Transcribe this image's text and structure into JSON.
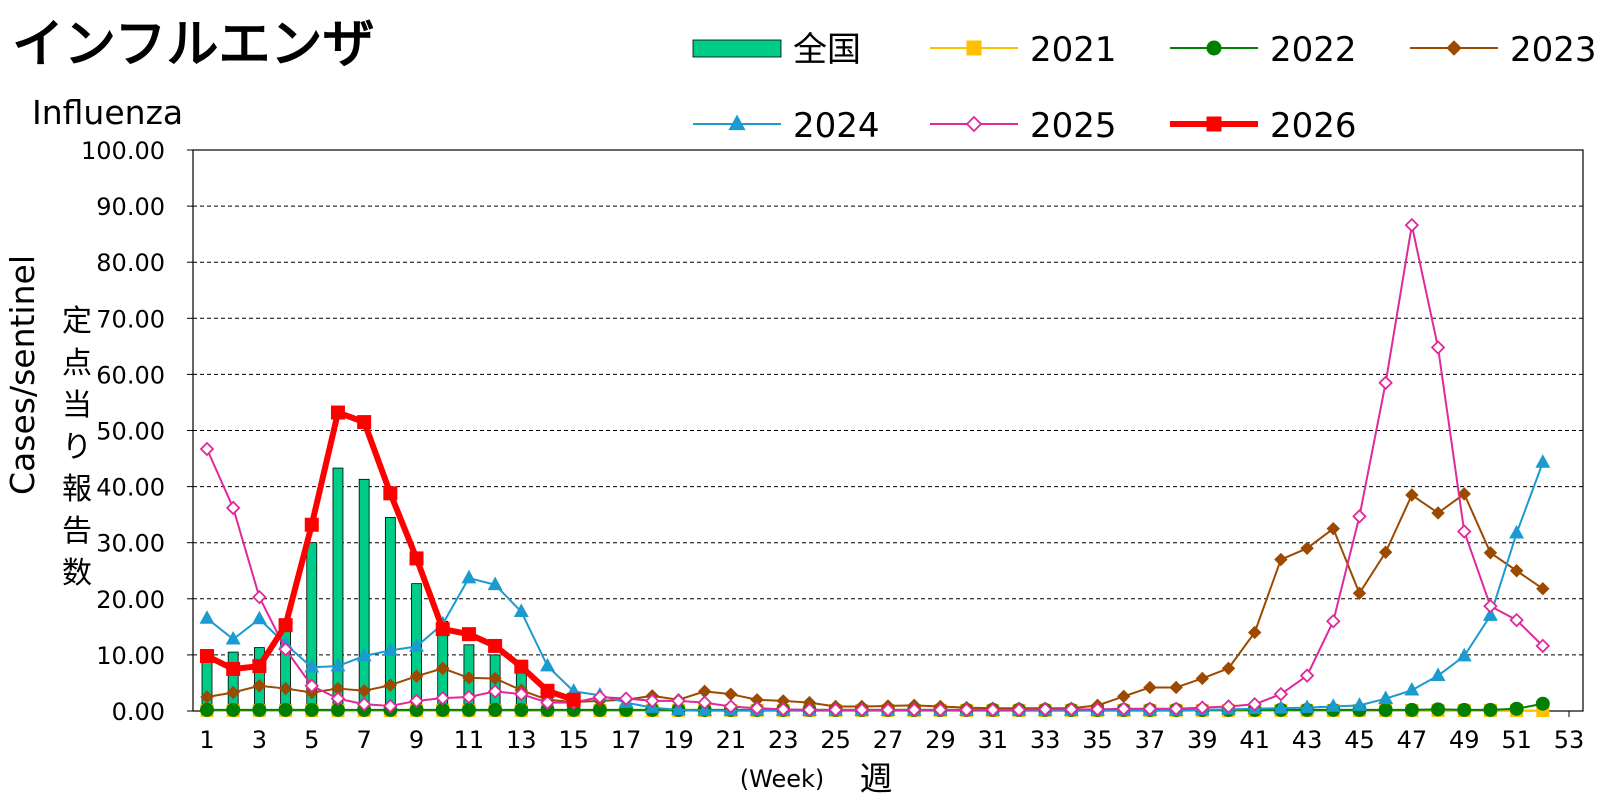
{
  "chart_data": {
    "type": "bar+line",
    "title": "インフルエンザ",
    "subtitle": "Influenza",
    "ylabel": "Cases/sentinel",
    "ylabel_jp": [
      "定",
      "点",
      "当",
      "り",
      "報",
      "告",
      "数"
    ],
    "xlabel": "(Week)",
    "xlabel_jp": "週",
    "ylim": [
      0,
      100
    ],
    "xlim": [
      1,
      53
    ],
    "yticks": [
      "0.00",
      "10.00",
      "20.00",
      "30.00",
      "40.00",
      "50.00",
      "60.00",
      "70.00",
      "80.00",
      "90.00",
      "100.00"
    ],
    "xticks": [
      "1",
      "3",
      "5",
      "7",
      "9",
      "11",
      "13",
      "15",
      "17",
      "19",
      "21",
      "23",
      "25",
      "27",
      "29",
      "31",
      "33",
      "35",
      "37",
      "39",
      "41",
      "43",
      "45",
      "47",
      "49",
      "51",
      "53"
    ],
    "grid": "horizontal dashed",
    "bars": {
      "name": "全国",
      "color": "#00cc8a",
      "weeks": [
        1,
        2,
        3,
        4,
        5,
        6,
        7,
        8,
        9,
        10,
        11,
        12,
        13,
        14,
        15
      ],
      "values": [
        9.5,
        10.5,
        11.3,
        14.5,
        30.0,
        43.3,
        41.3,
        34.5,
        22.7,
        16.0,
        11.8,
        10.0,
        7.0,
        3.0,
        1.5
      ]
    },
    "series": [
      {
        "name": "2021",
        "color": "#ffc000",
        "marker": "square",
        "width": 2,
        "values": [
          0.1,
          0.1,
          0.1,
          0.1,
          0.1,
          0.1,
          0.1,
          0.1,
          0.1,
          0.1,
          0.1,
          0.1,
          0.1,
          0.1,
          0.1,
          0.1,
          0.1,
          0.1,
          0.1,
          0.1,
          0.1,
          0.1,
          0.1,
          0.1,
          0.1,
          0.1,
          0.1,
          0.1,
          0.1,
          0.1,
          0.1,
          0.1,
          0.1,
          0.1,
          0.1,
          0.1,
          0.1,
          0.1,
          0.1,
          0.1,
          0.1,
          0.1,
          0.1,
          0.1,
          0.1,
          0.1,
          0.1,
          0.1,
          0.1,
          0.1,
          0.1,
          0.1
        ]
      },
      {
        "name": "2022",
        "color": "#008000",
        "marker": "circle",
        "width": 2,
        "values": [
          0.2,
          0.2,
          0.2,
          0.2,
          0.2,
          0.2,
          0.2,
          0.2,
          0.2,
          0.2,
          0.2,
          0.2,
          0.2,
          0.2,
          0.2,
          0.2,
          0.2,
          0.2,
          0.2,
          0.2,
          0.2,
          0.2,
          0.2,
          0.2,
          0.2,
          0.2,
          0.2,
          0.2,
          0.2,
          0.2,
          0.2,
          0.2,
          0.2,
          0.2,
          0.2,
          0.2,
          0.2,
          0.2,
          0.2,
          0.2,
          0.2,
          0.2,
          0.2,
          0.2,
          0.2,
          0.2,
          0.2,
          0.3,
          0.2,
          0.2,
          0.4,
          1.3
        ]
      },
      {
        "name": "2023",
        "color": "#9c4a00",
        "marker": "diamond",
        "width": 2,
        "values": [
          2.5,
          3.3,
          4.5,
          4.0,
          3.3,
          4.0,
          3.6,
          4.6,
          6.2,
          7.6,
          5.9,
          5.8,
          3.7,
          2.0,
          1.6,
          1.8,
          2.0,
          2.7,
          2.0,
          3.5,
          3.0,
          2.0,
          1.8,
          1.5,
          0.8,
          0.8,
          0.9,
          1.0,
          0.8,
          0.6,
          0.5,
          0.5,
          0.5,
          0.5,
          1.0,
          2.6,
          4.2,
          4.2,
          5.8,
          7.6,
          14.0,
          27.0,
          29.0,
          32.5,
          21.0,
          28.3,
          38.5,
          35.3,
          38.7,
          28.2,
          25.0,
          21.8
        ]
      },
      {
        "name": "2024",
        "color": "#1b9bd0",
        "marker": "triangle",
        "width": 2,
        "values": [
          16.5,
          12.8,
          16.4,
          11.9,
          7.8,
          8.0,
          9.8,
          10.8,
          11.5,
          15.5,
          23.7,
          22.5,
          17.7,
          8.0,
          3.5,
          2.8,
          1.5,
          0.6,
          0.2,
          0.1,
          0.1,
          0.1,
          0.1,
          0.1,
          0.1,
          0.1,
          0.1,
          0.1,
          0.1,
          0.1,
          0.1,
          0.1,
          0.1,
          0.1,
          0.1,
          0.1,
          0.1,
          0.1,
          0.2,
          0.3,
          0.4,
          0.5,
          0.6,
          0.8,
          1.0,
          2.2,
          3.7,
          6.3,
          9.8,
          17.0,
          31.7,
          44.3
        ]
      },
      {
        "name": "2025",
        "color": "#e0299c",
        "marker": "diamond-open",
        "width": 2,
        "values": [
          46.7,
          36.2,
          20.3,
          11.0,
          4.5,
          2.2,
          1.2,
          0.9,
          1.8,
          2.3,
          2.5,
          3.5,
          3.0,
          1.5,
          1.5,
          2.5,
          2.2,
          1.8,
          1.8,
          1.5,
          0.8,
          0.5,
          0.3,
          0.2,
          0.2,
          0.2,
          0.2,
          0.2,
          0.2,
          0.2,
          0.2,
          0.2,
          0.3,
          0.3,
          0.3,
          0.4,
          0.4,
          0.4,
          0.6,
          0.8,
          1.2,
          3.0,
          6.3,
          16.0,
          34.7,
          58.5,
          86.6,
          64.8,
          32.0,
          18.7,
          16.2,
          11.6
        ]
      },
      {
        "name": "2026",
        "color": "#ff0000",
        "marker": "square",
        "width": 6,
        "values": [
          9.8,
          7.5,
          8.0,
          15.3,
          33.2,
          53.2,
          51.5,
          38.8,
          27.2,
          14.6,
          13.7,
          11.6,
          7.9,
          3.6,
          2.0
        ]
      }
    ],
    "legend": "top-right, two rows"
  }
}
